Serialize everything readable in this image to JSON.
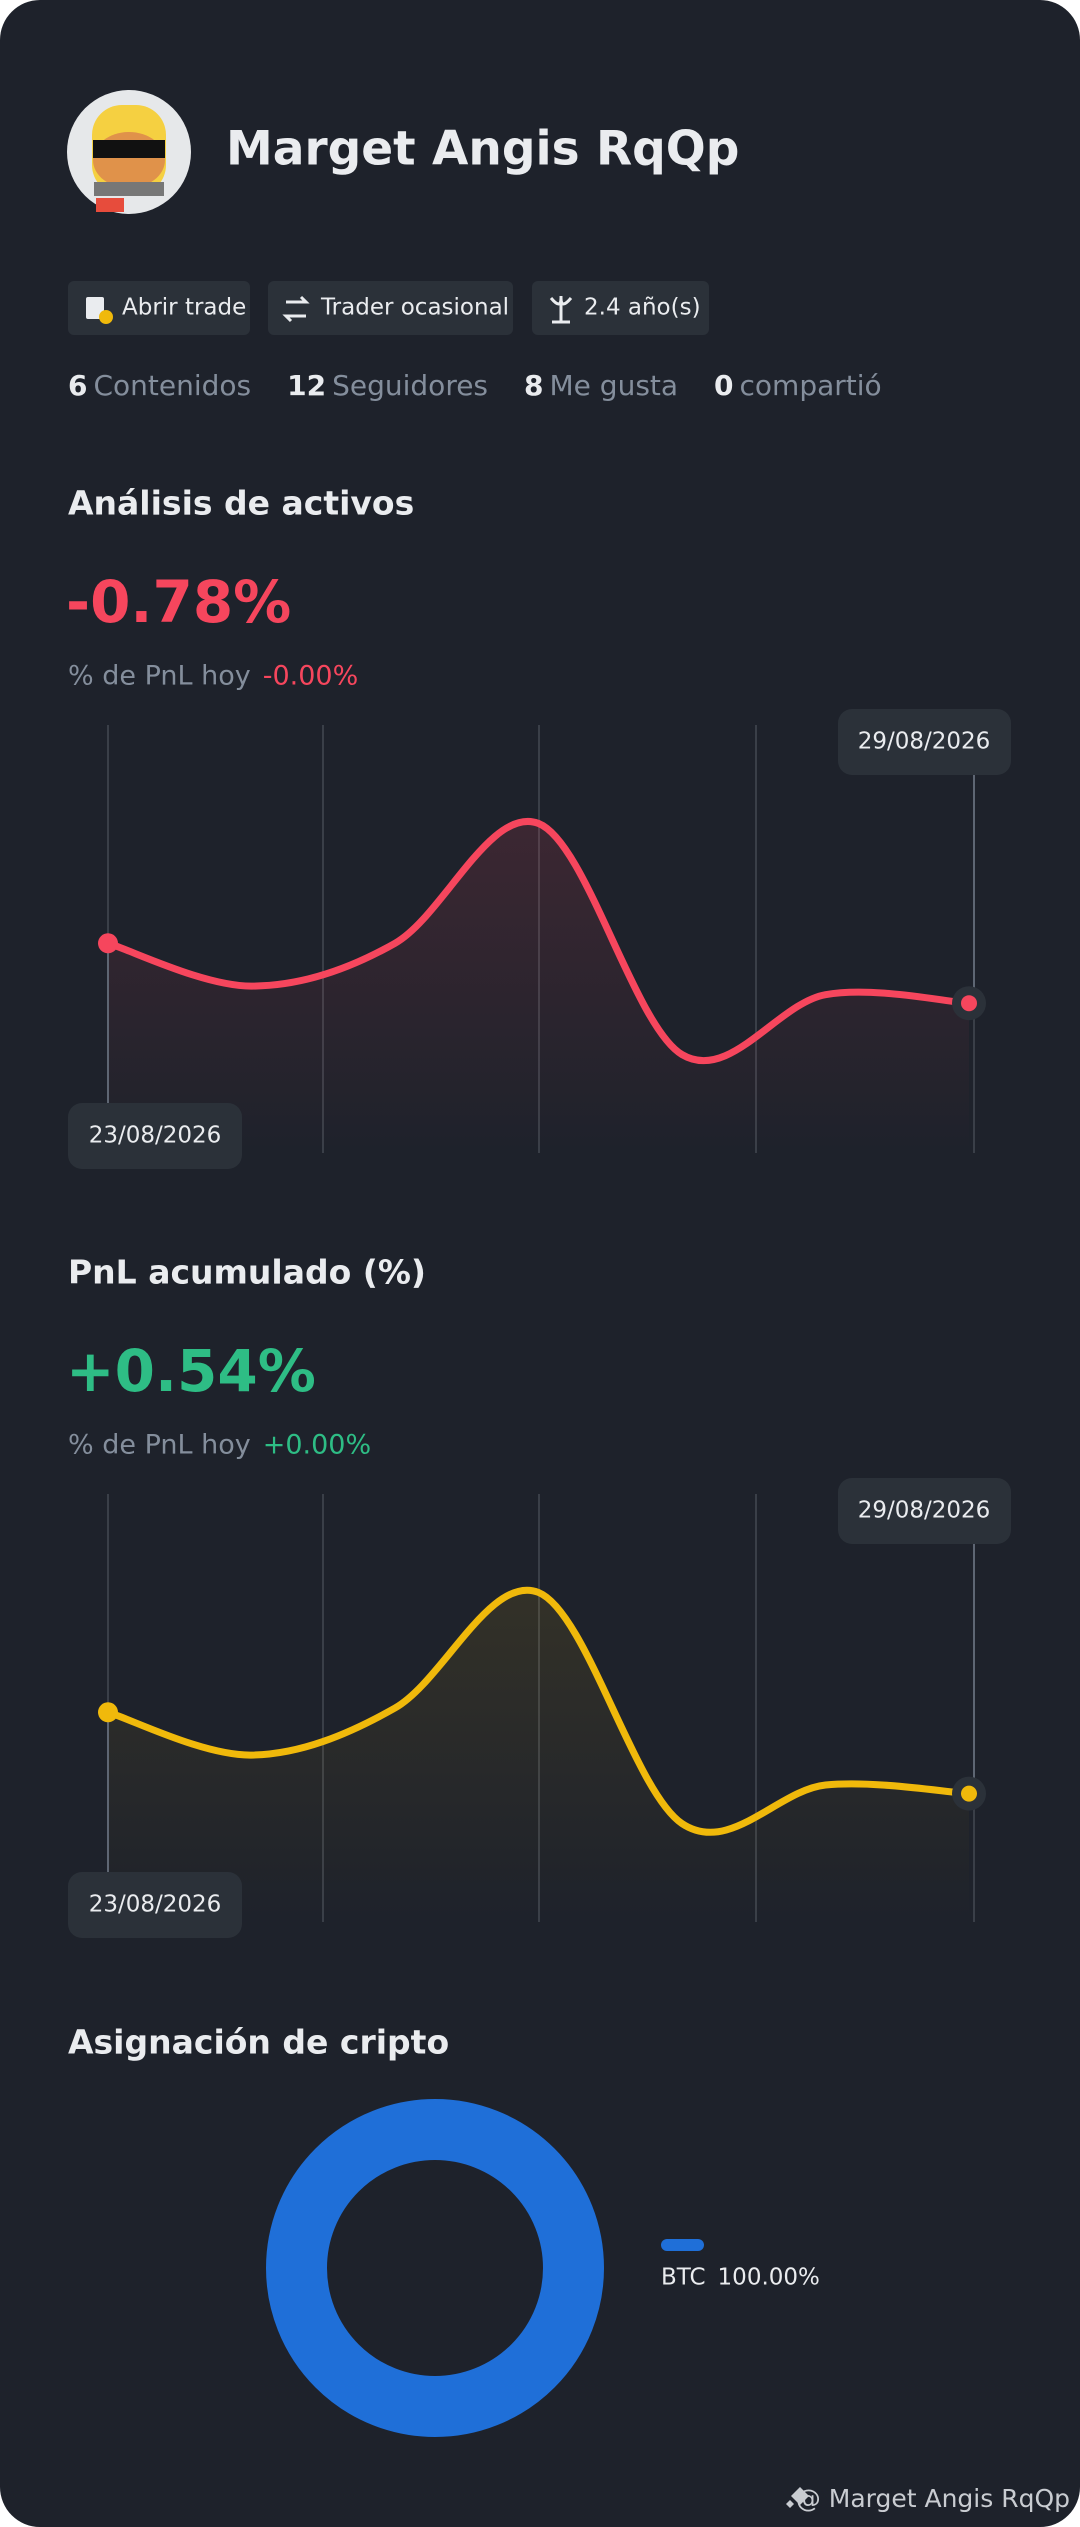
{
  "profile": {
    "name": "Marget Angis RqQp",
    "tags": [
      "Abrir trade",
      "Trader ocasional",
      "2.4 año(s)"
    ],
    "stats": [
      {
        "value": 6,
        "label": "Contenidos"
      },
      {
        "value": 12,
        "label": "Seguidores"
      },
      {
        "value": 8,
        "label": "Me gusta"
      },
      {
        "value": 0,
        "label": "compartió"
      }
    ]
  },
  "chart_data": [
    {
      "type": "line",
      "title": "Análisis de activos",
      "headline": "-0.78%",
      "subtitle": "% de PnL hoy",
      "subtitle_value": "-0.00%",
      "color": "#f6465d",
      "categories": [
        "23/08/2026",
        null,
        null,
        null,
        null,
        null,
        "29/08/2026"
      ],
      "values": [
        49,
        39,
        49,
        77,
        23,
        37,
        35
      ],
      "ylim": [
        0,
        100
      ]
    },
    {
      "type": "line",
      "title": "PnL acumulado (%)",
      "headline": "+0.54%",
      "subtitle": "% de PnL hoy",
      "subtitle_value": "+0.00%",
      "color": "#f0b90b",
      "categories": [
        "23/08/2026",
        null,
        null,
        null,
        null,
        null,
        "29/08/2026"
      ],
      "values": [
        49,
        39,
        50,
        77,
        23,
        32,
        30
      ],
      "ylim": [
        0,
        100
      ]
    },
    {
      "type": "donut",
      "title": "Asignación de cripto",
      "color": "#1f6fd8",
      "categories": [
        "BTC"
      ],
      "values": [
        100
      ],
      "value_labels": [
        "100.00%"
      ]
    }
  ],
  "footer": "@ Marget Angis RqQp"
}
